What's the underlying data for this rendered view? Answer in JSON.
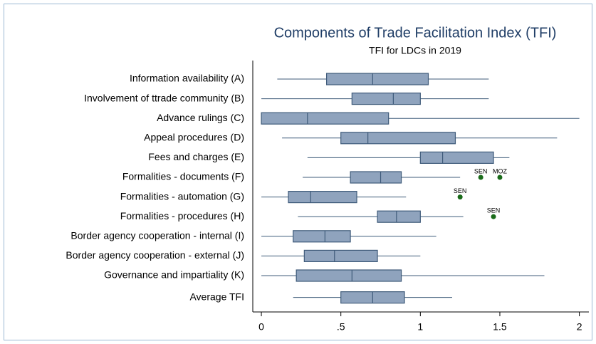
{
  "chart_data": {
    "type": "boxplot",
    "title": "Components of Trade Facilitation Index (TFI)",
    "subtitle": "TFI for LDCs in 2019",
    "orientation": "horizontal",
    "box_color": "#8fa3bd",
    "line_color": "#3f5b7a",
    "outlier_color": "#1a6b1a",
    "categories": [
      "Information availability (A)",
      "Involvement of ttrade community (B)",
      "Advance rulings (C)",
      "Appeal procedures (D)",
      "Fees and charges (E)",
      "Formalities - documents (F)",
      "Formalities - automation (G)",
      "Formalities - procedures (H)",
      "Border agency cooperation - internal (I)",
      "Border agency cooperation - external (J)",
      "Governance and impartiality (K)",
      "Average TFI"
    ],
    "boxes": [
      {
        "min": 0.1,
        "q1": 0.41,
        "median": 0.7,
        "q3": 1.05,
        "max": 1.43,
        "outliers": []
      },
      {
        "min": 0,
        "q1": 0.57,
        "median": 0.83,
        "q3": 1.0,
        "max": 1.43,
        "outliers": []
      },
      {
        "min": 0,
        "q1": 0,
        "median": 0.29,
        "q3": 0.8,
        "max": 2.0,
        "outliers": []
      },
      {
        "min": 0.13,
        "q1": 0.5,
        "median": 0.67,
        "q3": 1.22,
        "max": 1.86,
        "outliers": []
      },
      {
        "min": 0.29,
        "q1": 1.0,
        "median": 1.14,
        "q3": 1.46,
        "max": 1.56,
        "outliers": []
      },
      {
        "min": 0.26,
        "q1": 0.56,
        "median": 0.75,
        "q3": 0.88,
        "max": 1.25,
        "outliers": [
          {
            "label": "SEN",
            "value": 1.38
          },
          {
            "label": "MOZ",
            "value": 1.5
          }
        ]
      },
      {
        "min": 0,
        "q1": 0.17,
        "median": 0.31,
        "q3": 0.6,
        "max": 0.91,
        "outliers": [
          {
            "label": "SEN",
            "value": 1.25
          }
        ]
      },
      {
        "min": 0.23,
        "q1": 0.73,
        "median": 0.85,
        "q3": 1.0,
        "max": 1.27,
        "outliers": [
          {
            "label": "SEN",
            "value": 1.46
          }
        ]
      },
      {
        "min": 0,
        "q1": 0.2,
        "median": 0.4,
        "q3": 0.56,
        "max": 1.1,
        "outliers": []
      },
      {
        "min": 0,
        "q1": 0.27,
        "median": 0.46,
        "q3": 0.73,
        "max": 1.0,
        "outliers": []
      },
      {
        "min": 0,
        "q1": 0.22,
        "median": 0.57,
        "q3": 0.88,
        "max": 1.78,
        "outliers": []
      },
      {
        "min": 0.2,
        "q1": 0.5,
        "median": 0.7,
        "q3": 0.9,
        "max": 1.2,
        "outliers": []
      }
    ],
    "xlim": [
      -0.054,
      2.06
    ],
    "xticks": [
      0,
      {
        "value": 0.5,
        "label": ".5"
      },
      1,
      1.5,
      2
    ]
  }
}
